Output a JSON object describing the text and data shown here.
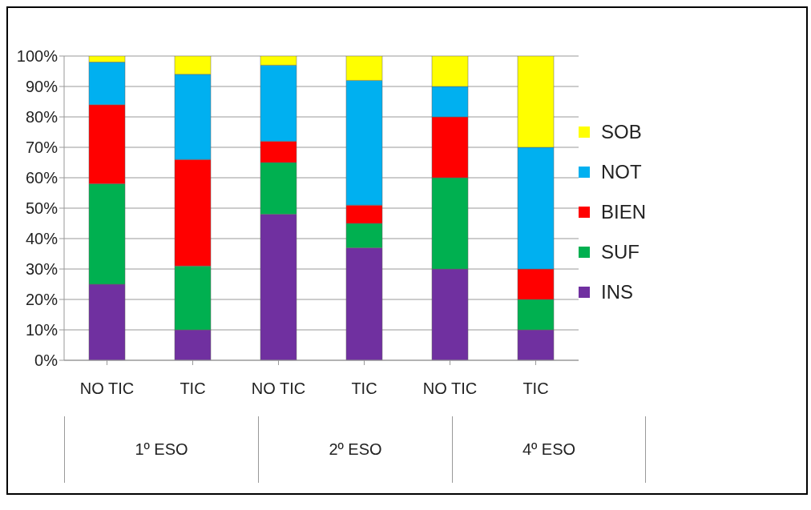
{
  "chart_data": {
    "type": "bar",
    "stacked": true,
    "categories": [
      "NO TIC",
      "TIC",
      "NO TIC",
      "TIC",
      "NO TIC",
      "TIC"
    ],
    "annotations": [
      "1º ESO",
      "2º ESO",
      "4º ESO"
    ],
    "series": [
      {
        "name": "INS",
        "color": "#7030a0",
        "values": [
          25,
          10,
          48,
          37,
          30,
          10
        ]
      },
      {
        "name": "SUF",
        "color": "#00b050",
        "values": [
          33,
          21,
          17,
          8,
          30,
          10
        ]
      },
      {
        "name": "BIEN",
        "color": "#ff0000",
        "values": [
          26,
          35,
          7,
          6,
          20,
          10
        ]
      },
      {
        "name": "NOT",
        "color": "#00b0f0",
        "values": [
          14,
          28,
          25,
          41,
          10,
          40
        ]
      },
      {
        "name": "SOB",
        "color": "#ffff00",
        "values": [
          2,
          6,
          3,
          8,
          10,
          30
        ]
      }
    ],
    "ylim": [
      0,
      100
    ],
    "yticks": [
      {
        "value": 0,
        "label": "0%"
      },
      {
        "value": 10,
        "label": "10%"
      },
      {
        "value": 20,
        "label": "20%"
      },
      {
        "value": 30,
        "label": "30%"
      },
      {
        "value": 40,
        "label": "40%"
      },
      {
        "value": 50,
        "label": "50%"
      },
      {
        "value": 60,
        "label": "60%"
      },
      {
        "value": 70,
        "label": "70%"
      },
      {
        "value": 80,
        "label": "80%"
      },
      {
        "value": 90,
        "label": "90%"
      },
      {
        "value": 100,
        "label": "100%"
      }
    ],
    "grid": "y",
    "legend": "right"
  }
}
